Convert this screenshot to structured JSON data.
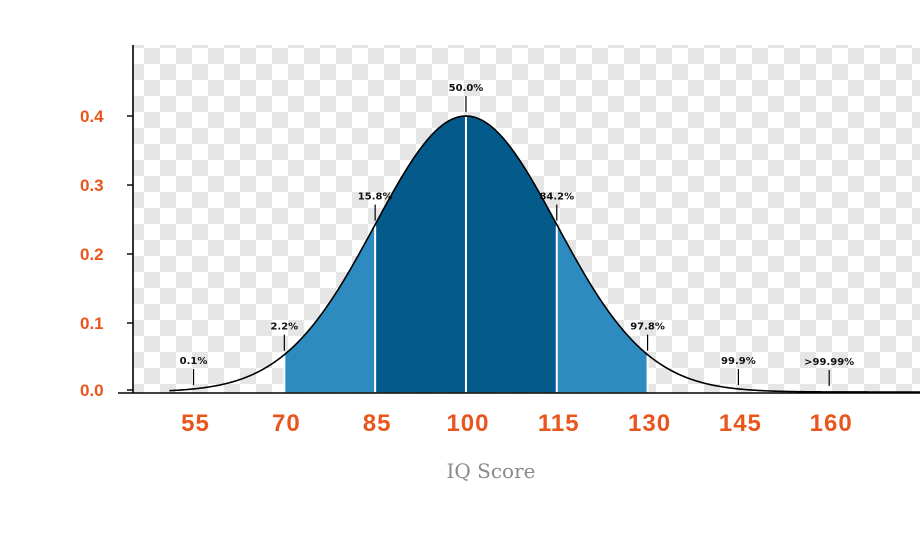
{
  "chart_data": {
    "type": "area",
    "title": "",
    "xlabel": "IQ Score",
    "ylabel": "",
    "mean": 100,
    "sd": 15,
    "xlim": [
      45,
      175
    ],
    "ylim": [
      0,
      0.5
    ],
    "x_ticks": [
      55,
      70,
      85,
      100,
      115,
      130,
      145,
      160
    ],
    "y_ticks": [
      {
        "value": 0.0,
        "label": "0.0"
      },
      {
        "value": 0.1,
        "label": "0.1"
      },
      {
        "value": 0.2,
        "label": "0.2"
      },
      {
        "value": 0.3,
        "label": "0.3"
      },
      {
        "value": 0.4,
        "label": "0.4"
      }
    ],
    "cumulative_labels": [
      {
        "x": 55,
        "label": "0.1%"
      },
      {
        "x": 70,
        "label": "2.2%"
      },
      {
        "x": 85,
        "label": "15.8%"
      },
      {
        "x": 100,
        "label": "50.0%"
      },
      {
        "x": 115,
        "label": "84.2%"
      },
      {
        "x": 130,
        "label": "97.8%"
      },
      {
        "x": 145,
        "label": "99.9%"
      },
      {
        "x": 160,
        "label": ">99.99%"
      }
    ],
    "bands": [
      {
        "from": 70,
        "to": 85,
        "color": "#2e8bc0"
      },
      {
        "from": 85,
        "to": 115,
        "color": "#055a8c"
      },
      {
        "from": 115,
        "to": 130,
        "color": "#2e8bc0"
      }
    ],
    "grid": false,
    "legend": "none"
  },
  "colors": {
    "tick_text": "#e8561e",
    "axis_label": "#8a8a8a",
    "inner_band": "#055a8c",
    "outer_band": "#2e8bc0",
    "checker_light": "#ffffff",
    "checker_dark": "#e6e6e6"
  }
}
